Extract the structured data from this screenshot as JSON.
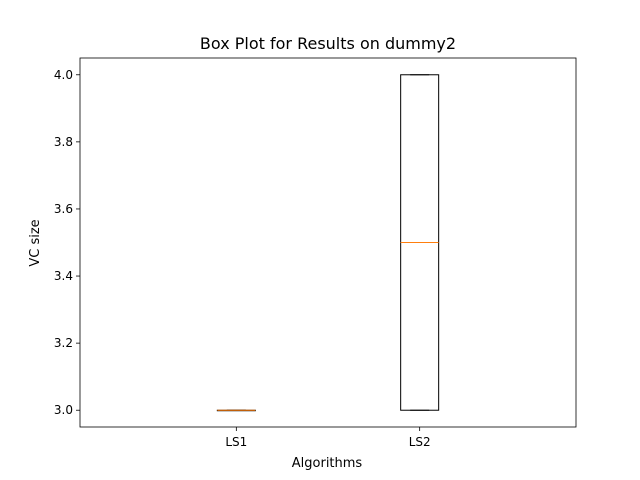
{
  "chart_data": {
    "type": "box",
    "title": "Box Plot for Results on dummy2",
    "xlabel": "Algorithms",
    "ylabel": "VC size",
    "categories": [
      "LS1",
      "LS2"
    ],
    "boxes": [
      {
        "name": "LS1",
        "whisker_low": 3.0,
        "q1": 3.0,
        "median": 3.0,
        "q3": 3.0,
        "whisker_high": 3.0
      },
      {
        "name": "LS2",
        "whisker_low": 3.0,
        "q1": 3.0,
        "median": 3.5,
        "q3": 4.0,
        "whisker_high": 4.0
      }
    ],
    "ylim": [
      2.95,
      4.05
    ],
    "yticks": [
      "3.0",
      "3.2",
      "3.4",
      "3.6",
      "3.8",
      "4.0"
    ],
    "grid": false,
    "colors": {
      "box": "#000000",
      "median": "#ff7f0e"
    }
  }
}
